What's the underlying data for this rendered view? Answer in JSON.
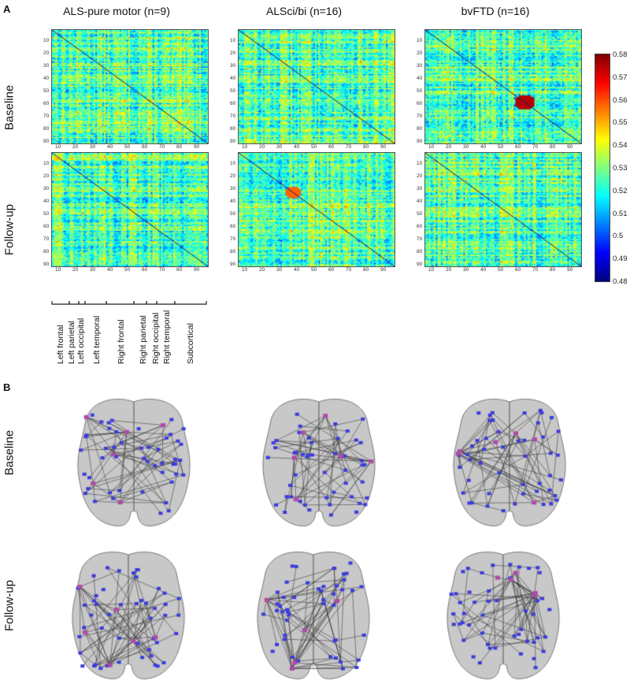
{
  "panels": {
    "a": "A",
    "b": "B"
  },
  "columns": [
    {
      "title": "ALS-pure motor (n=9)"
    },
    {
      "title": "ALSci/bi (n=16)"
    },
    {
      "title": "bvFTD (n=16)"
    }
  ],
  "rows": [
    {
      "label": "Baseline"
    },
    {
      "label": "Follow-up"
    }
  ],
  "ticks": [
    "10",
    "20",
    "30",
    "40",
    "50",
    "60",
    "70",
    "80",
    "90"
  ],
  "colorbar": {
    "ticks": [
      "0.58",
      "0.57",
      "0.56",
      "0.55",
      "0.54",
      "0.53",
      "0.52",
      "0.51",
      "0.5",
      "0.49",
      "0.48"
    ],
    "min": 0.48,
    "max": 0.58,
    "colormap": "jet"
  },
  "regions": [
    {
      "label": "Left frontal"
    },
    {
      "label": "Left parietal"
    },
    {
      "label": "Left occipital"
    },
    {
      "label": "Left temporal"
    },
    {
      "label": "Right frontal"
    },
    {
      "label": "Right parietal"
    },
    {
      "label": "Right occipital"
    },
    {
      "label": "Right temporal"
    },
    {
      "label": "Subcortical"
    }
  ],
  "colors": {
    "node": "#3b3bdc",
    "hub_node": "#b04aa8",
    "brain_fill": "#c8c8c8",
    "edge": "#333333"
  }
}
